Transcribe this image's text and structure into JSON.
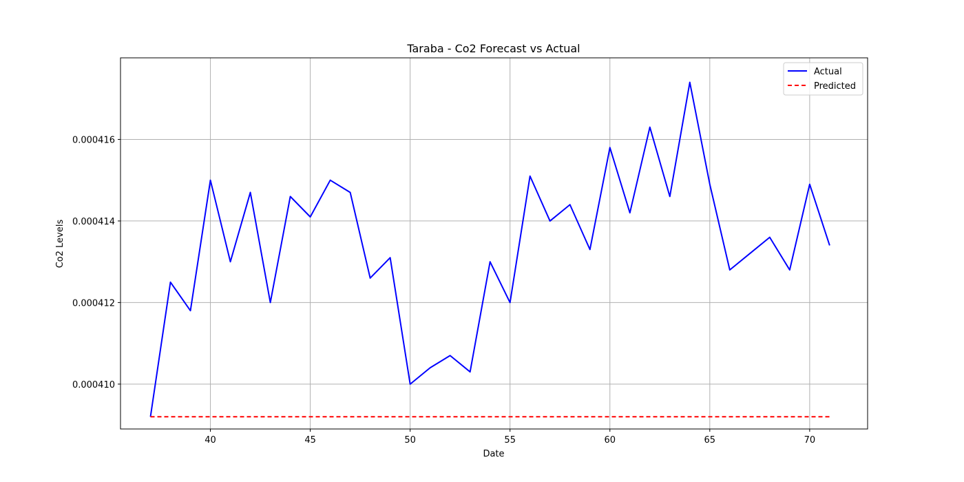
{
  "chart_data": {
    "type": "line",
    "title": "Taraba - Co2 Forecast vs Actual",
    "xlabel": "Date",
    "ylabel": "Co2 Levels",
    "xlim": [
      35.5,
      72.9
    ],
    "ylim": [
      0.0004089,
      0.000418
    ],
    "xticks": [
      40,
      45,
      50,
      55,
      60,
      65,
      70
    ],
    "yticks": [
      0.00041,
      0.000412,
      0.000414,
      0.000416
    ],
    "ytick_labels": [
      "0.000410",
      "0.000412",
      "0.000414",
      "0.000416"
    ],
    "grid": true,
    "legend_position": "top-right",
    "series": [
      {
        "name": "Actual",
        "color": "#0000ff",
        "style": "solid",
        "x": [
          37,
          38,
          39,
          40,
          41,
          42,
          43,
          44,
          45,
          46,
          47,
          48,
          49,
          50,
          51,
          52,
          53,
          54,
          55,
          56,
          57,
          58,
          59,
          60,
          61,
          62,
          63,
          64,
          65,
          66,
          67,
          68,
          69,
          70,
          71
        ],
        "values": [
          0.0004092,
          0.0004125,
          0.0004118,
          0.000415,
          0.000413,
          0.0004147,
          0.000412,
          0.0004146,
          0.0004141,
          0.000415,
          0.0004147,
          0.0004126,
          0.0004131,
          0.00041,
          0.0004104,
          0.0004107,
          0.0004103,
          0.000413,
          0.000412,
          0.0004151,
          0.000414,
          0.0004144,
          0.0004133,
          0.0004158,
          0.0004142,
          0.0004163,
          0.0004146,
          0.0004174,
          0.0004149,
          0.0004128,
          0.0004132,
          0.0004136,
          0.0004128,
          0.0004149,
          0.0004134
        ]
      },
      {
        "name": "Predicted",
        "color": "#ff0000",
        "style": "dashed",
        "x": [
          37,
          71
        ],
        "values": [
          0.0004092,
          0.0004092
        ]
      }
    ]
  }
}
